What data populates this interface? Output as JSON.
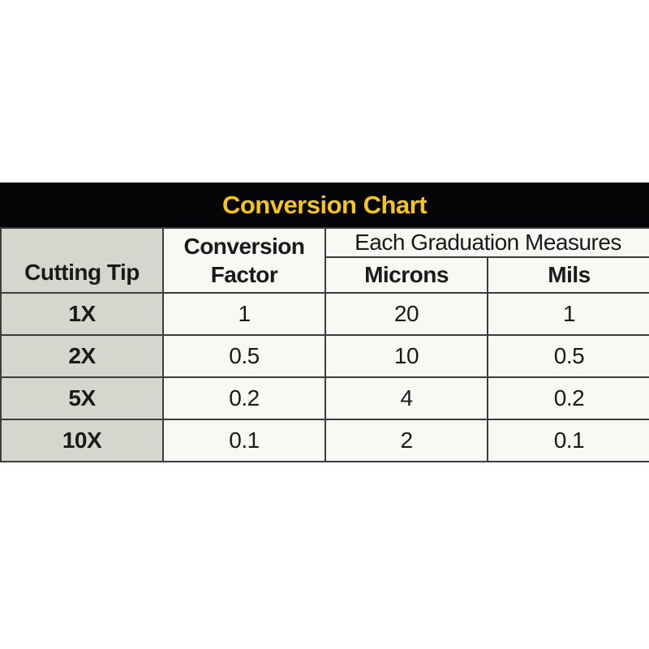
{
  "title": "Conversion Chart",
  "colors": {
    "title_bar_bg": "#050508",
    "title_text": "#F5C51C",
    "tip_col_bg": "#D5D6CD",
    "cell_bg": "#F8F8F4",
    "border": "#3C3C3C",
    "text": "#1A1A1A",
    "page_bg": "#FFFFFF"
  },
  "table": {
    "headers": {
      "cutting_tip": "Cutting Tip",
      "conversion_factor": "Conversion Factor",
      "graduation_group": "Each Graduation Measures",
      "microns": "Microns",
      "mils": "Mils"
    },
    "rows": [
      {
        "cutting_tip": "1X",
        "conversion_factor": "1",
        "microns": "20",
        "mils": "1"
      },
      {
        "cutting_tip": "2X",
        "conversion_factor": "0.5",
        "microns": "10",
        "mils": "0.5"
      },
      {
        "cutting_tip": "5X",
        "conversion_factor": "0.2",
        "microns": "4",
        "mils": "0.2"
      },
      {
        "cutting_tip": "10X",
        "conversion_factor": "0.1",
        "microns": "2",
        "mils": "0.1"
      }
    ]
  },
  "chart_data": {
    "type": "table",
    "title": "Conversion Chart",
    "columns": [
      "Cutting Tip",
      "Conversion Factor",
      "Each Graduation Measures: Microns",
      "Each Graduation Measures: Mils"
    ],
    "rows": [
      [
        "1X",
        1,
        20,
        1
      ],
      [
        "2X",
        0.5,
        10,
        0.5
      ],
      [
        "5X",
        0.2,
        4,
        0.2
      ],
      [
        "10X",
        0.1,
        2,
        0.1
      ]
    ],
    "layout": {
      "header_group": {
        "label": "Each Graduation Measures",
        "spans": [
          "Microns",
          "Mils"
        ]
      },
      "title_bar": {
        "background": "#050508",
        "text_color": "#F5C51C"
      },
      "first_column_background": "#D5D6CD"
    }
  }
}
